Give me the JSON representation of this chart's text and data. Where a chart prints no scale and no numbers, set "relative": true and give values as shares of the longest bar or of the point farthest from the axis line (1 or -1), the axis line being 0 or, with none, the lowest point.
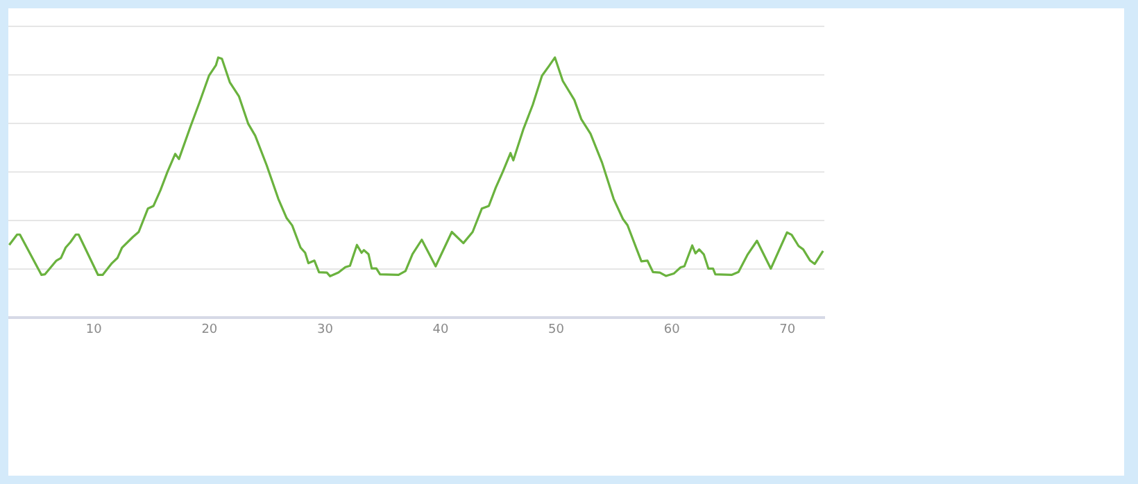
{
  "chart_data": {
    "type": "line",
    "relative": true,
    "grid": "y",
    "tick_labels": "x",
    "marker": "none",
    "line_style": "solid",
    "legend": false,
    "xlim": [
      2.6,
      73.2
    ],
    "xticks": [
      10,
      20,
      30,
      40,
      50,
      60,
      70
    ],
    "series": [
      {
        "color": "#6ab23e",
        "x": [
          2.68,
          3.36,
          3.6,
          5.47,
          5.76,
          6.76,
          7.15,
          7.56,
          7.96,
          8.44,
          8.68,
          10.36,
          10.76,
          11.56,
          12.04,
          12.44,
          13.36,
          13.88,
          14.68,
          15.16,
          15.76,
          16.36,
          17.04,
          17.36,
          18.36,
          19.16,
          19.96,
          20.56,
          20.76,
          21.08,
          21.76,
          22.56,
          23.36,
          23.96,
          24.96,
          25.96,
          26.68,
          27.16,
          27.88,
          28.28,
          28.56,
          29.08,
          29.48,
          30.16,
          30.44,
          31.16,
          31.76,
          32.16,
          32.76,
          33.16,
          33.36,
          33.76,
          34.04,
          34.44,
          34.76,
          36.36,
          36.96,
          37.57,
          38.37,
          39.57,
          40.97,
          41.97,
          42.77,
          43.57,
          44.17,
          44.77,
          45.37,
          46.05,
          46.29,
          47.17,
          47.97,
          48.77,
          49.37,
          49.89,
          50.57,
          51.57,
          52.17,
          52.97,
          53.97,
          54.97,
          55.77,
          56.17,
          56.97,
          57.37,
          57.89,
          58.37,
          58.97,
          59.49,
          60.17,
          60.77,
          61.09,
          61.77,
          62.05,
          62.37,
          62.77,
          63.17,
          63.57,
          63.77,
          65.17,
          65.77,
          66.57,
          67.37,
          68.57,
          69.97,
          70.37,
          70.97,
          71.37,
          71.97,
          72.37,
          73.09
        ],
        "values": [
          0.28,
          0.32,
          0.32,
          0.165,
          0.167,
          0.22,
          0.23,
          0.27,
          0.29,
          0.32,
          0.32,
          0.165,
          0.165,
          0.21,
          0.23,
          0.27,
          0.31,
          0.33,
          0.42,
          0.43,
          0.49,
          0.56,
          0.63,
          0.61,
          0.735,
          0.83,
          0.93,
          0.97,
          1.0,
          0.995,
          0.905,
          0.85,
          0.745,
          0.7,
          0.585,
          0.457,
          0.383,
          0.355,
          0.27,
          0.25,
          0.21,
          0.22,
          0.175,
          0.174,
          0.16,
          0.174,
          0.195,
          0.2,
          0.28,
          0.25,
          0.26,
          0.245,
          0.19,
          0.19,
          0.167,
          0.165,
          0.18,
          0.245,
          0.3,
          0.198,
          0.33,
          0.287,
          0.33,
          0.42,
          0.43,
          0.5,
          0.56,
          0.633,
          0.605,
          0.726,
          0.818,
          0.93,
          0.967,
          1.0,
          0.91,
          0.837,
          0.763,
          0.707,
          0.596,
          0.457,
          0.38,
          0.356,
          0.263,
          0.217,
          0.22,
          0.176,
          0.174,
          0.161,
          0.17,
          0.194,
          0.198,
          0.278,
          0.248,
          0.263,
          0.244,
          0.189,
          0.189,
          0.167,
          0.165,
          0.176,
          0.244,
          0.296,
          0.189,
          0.328,
          0.319,
          0.276,
          0.263,
          0.22,
          0.207,
          0.257
        ]
      }
    ]
  }
}
